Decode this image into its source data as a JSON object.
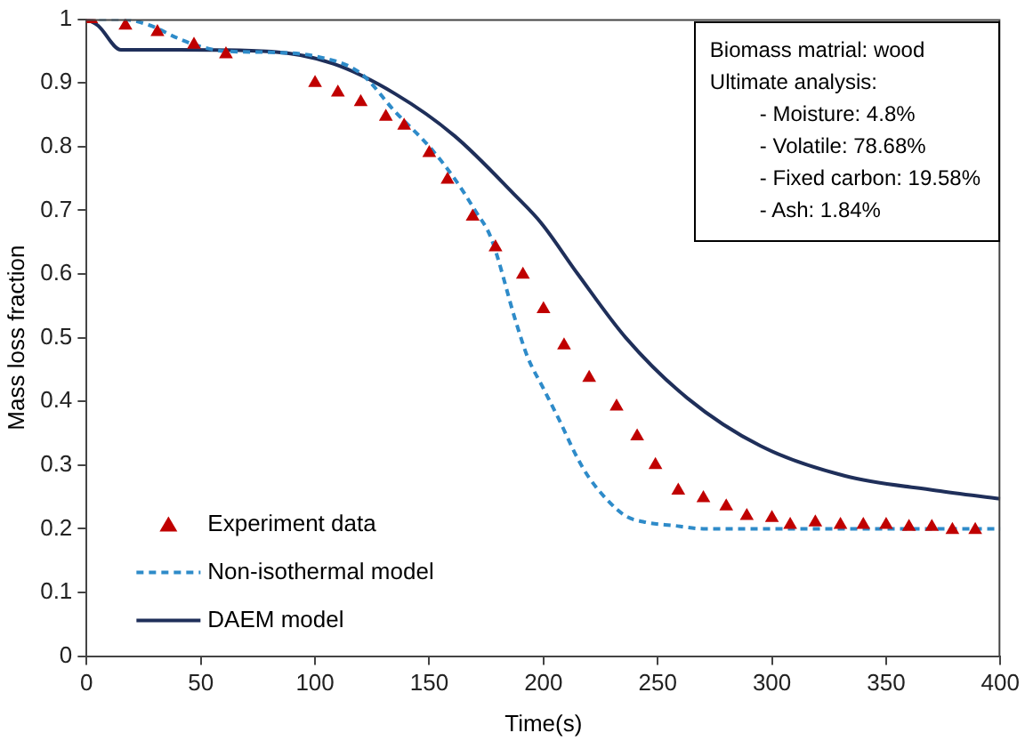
{
  "chart_data": {
    "type": "line",
    "xlabel": "Time(s)",
    "ylabel": "Mass loss fraction",
    "xlim": [
      0,
      400
    ],
    "xticks": [
      0,
      50,
      100,
      150,
      200,
      250,
      300,
      350,
      400
    ],
    "ylim": [
      0,
      1
    ],
    "yticks": [
      0,
      0.1,
      0.2,
      0.3,
      0.4,
      0.5,
      0.6,
      0.7,
      0.8,
      0.9,
      1
    ],
    "grid": false,
    "legend": "bottom left",
    "annotations": [
      "Biomass matrial: wood",
      "Ultimate analysis:",
      "- Moisture: 4.8%",
      "- Volatile: 78.68%",
      "- Fixed carbon: 19.58%",
      "- Ash: 1.84%"
    ],
    "series": [
      {
        "name": "Experiment data",
        "type": "scatter",
        "marker": "triangle",
        "color": "#c00000",
        "x": [
          2,
          17,
          31,
          47,
          61,
          100,
          110,
          120,
          131,
          139,
          150,
          158,
          169,
          179,
          191,
          200,
          209,
          220,
          232,
          241,
          249,
          259,
          270,
          280,
          289,
          300,
          308,
          319,
          330,
          340,
          350,
          360,
          370,
          379,
          389
        ],
        "values": [
          1.0,
          0.99,
          0.98,
          0.96,
          0.945,
          0.9,
          0.885,
          0.87,
          0.847,
          0.833,
          0.79,
          0.748,
          0.69,
          0.642,
          0.599,
          0.545,
          0.488,
          0.437,
          0.392,
          0.345,
          0.3,
          0.26,
          0.248,
          0.235,
          0.22,
          0.217,
          0.206,
          0.21,
          0.206,
          0.206,
          0.206,
          0.203,
          0.203,
          0.198,
          0.198
        ]
      },
      {
        "name": "Non-isothermal model",
        "type": "line",
        "line_style": "dashed",
        "marker": "none",
        "color": "#2e8bc9",
        "x": [
          0,
          15,
          28,
          40,
          49,
          60,
          80,
          100,
          120,
          135,
          150,
          161,
          170,
          177,
          188,
          193,
          200,
          207,
          215,
          220,
          228,
          236,
          245,
          257,
          270,
          300,
          350,
          400
        ],
        "values": [
          1.0,
          1.0,
          0.99,
          0.97,
          0.958,
          0.95,
          0.948,
          0.942,
          0.915,
          0.855,
          0.8,
          0.75,
          0.7,
          0.657,
          0.524,
          0.47,
          0.42,
          0.37,
          0.31,
          0.28,
          0.245,
          0.22,
          0.21,
          0.205,
          0.2,
          0.2,
          0.2,
          0.2
        ]
      },
      {
        "name": "DAEM model",
        "type": "line",
        "line_style": "solid",
        "marker": "none",
        "color": "#1f2f5a",
        "x": [
          0,
          5,
          15,
          40,
          81,
          108,
          135,
          161,
          188,
          199,
          215,
          236,
          263,
          295,
          332,
          372,
          400
        ],
        "values": [
          1.0,
          0.99,
          0.952,
          0.952,
          0.949,
          0.93,
          0.883,
          0.817,
          0.722,
          0.68,
          0.6,
          0.5,
          0.405,
          0.33,
          0.283,
          0.26,
          0.247
        ]
      }
    ]
  }
}
